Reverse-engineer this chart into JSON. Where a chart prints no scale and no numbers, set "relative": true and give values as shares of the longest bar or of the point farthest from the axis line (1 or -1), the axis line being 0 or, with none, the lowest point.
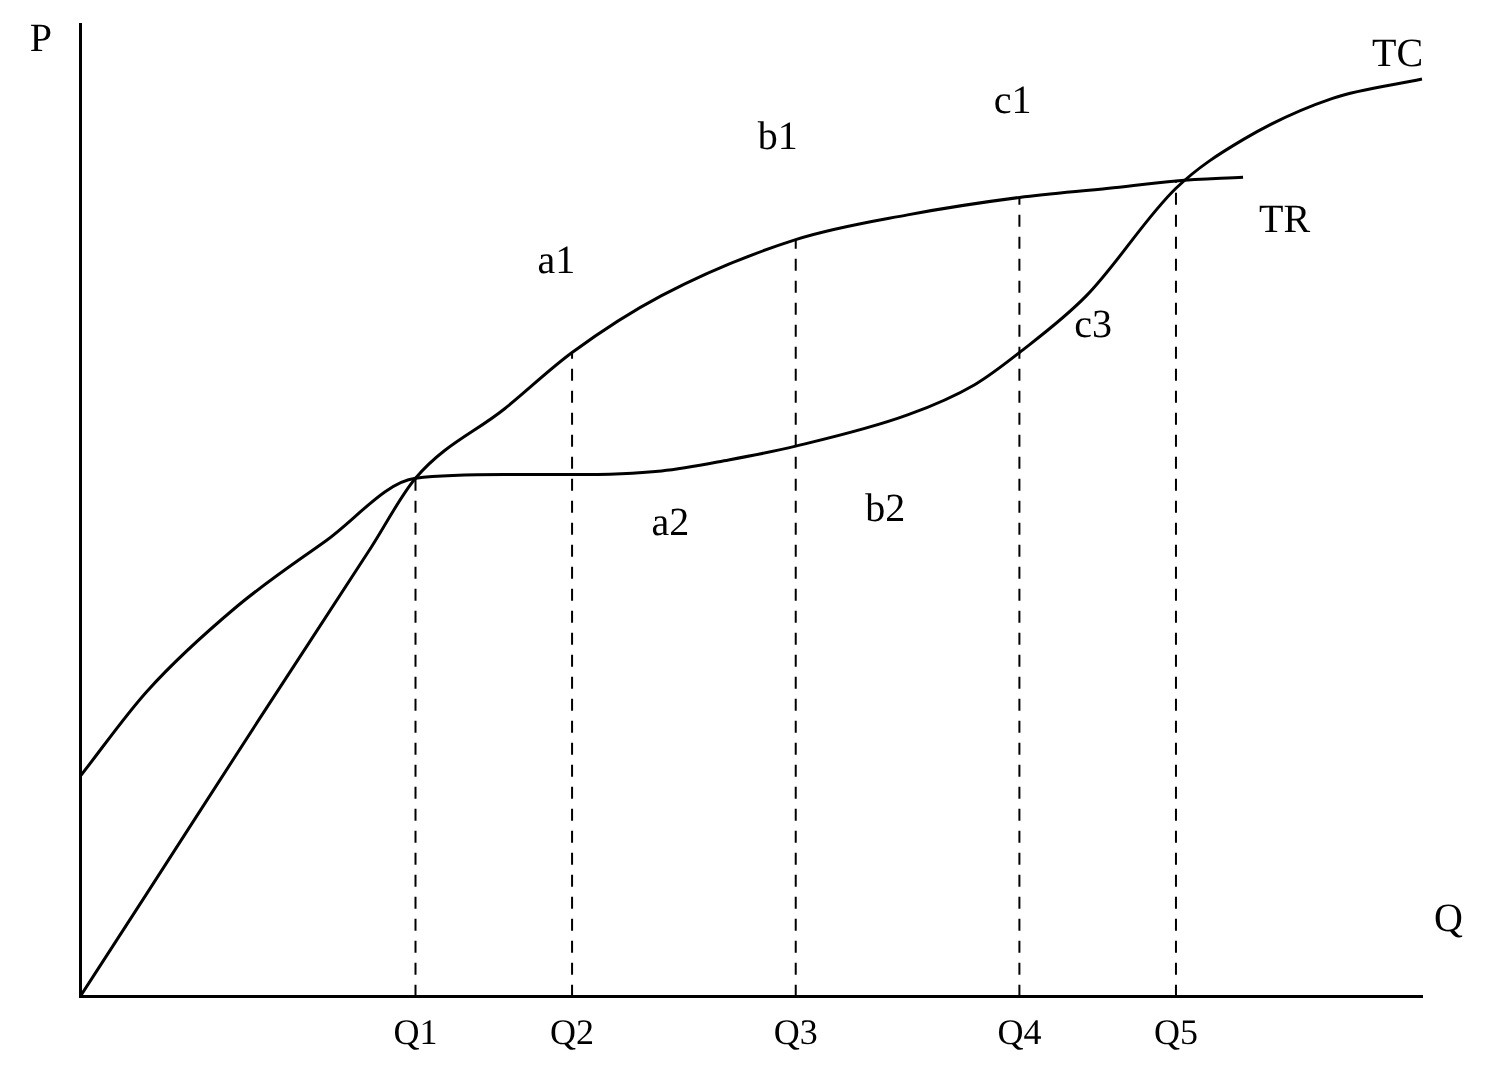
{
  "chart_data": {
    "type": "line",
    "relative": true,
    "xlabel": "Q",
    "ylabel": "P",
    "tick_labels": "x",
    "grid": false,
    "legend": false,
    "marker": "none",
    "line_style": "solid",
    "categories": [
      null,
      null,
      null,
      null,
      null,
      null,
      null,
      null,
      null,
      null,
      null,
      null,
      null,
      null,
      null,
      "Q1",
      null,
      null,
      null,
      null,
      null,
      null,
      "Q2",
      null,
      null,
      null,
      null,
      null,
      null,
      null,
      null,
      null,
      "Q3",
      null,
      null,
      null,
      null,
      null,
      null,
      null,
      null,
      null,
      "Q4",
      null,
      null,
      null,
      null,
      null,
      null,
      "Q5",
      null,
      null,
      null,
      null,
      null,
      null,
      null,
      null,
      null,
      null,
      null
    ],
    "series": [
      {
        "name": "TC",
        "color": "#000000",
        "values": [
          0.24,
          null,
          null,
          0.333,
          null,
          null,
          null,
          0.425,
          null,
          null,
          null,
          0.497,
          null,
          null,
          null,
          0.565,
          null,
          null,
          null,
          0.569,
          null,
          null,
          0.569,
          null,
          null,
          null,
          0.573,
          null,
          null,
          0.585,
          null,
          null,
          0.6,
          null,
          null,
          null,
          null,
          0.634,
          null,
          null,
          0.667,
          null,
          0.702,
          null,
          null,
          0.764,
          null,
          null,
          null,
          0.881,
          null,
          null,
          0.934,
          null,
          null,
          null,
          0.979,
          null,
          null,
          null,
          1.0
        ]
      },
      {
        "name": "TR",
        "color": "#000000",
        "values": [
          0,
          null,
          null,
          0.113,
          null,
          null,
          null,
          null,
          0.302,
          null,
          null,
          null,
          null,
          0.489,
          null,
          0.565,
          null,
          null,
          null,
          0.641,
          null,
          null,
          0.702,
          null,
          null,
          null,
          0.764,
          null,
          null,
          null,
          null,
          null,
          0.825,
          null,
          null,
          null,
          null,
          0.852,
          null,
          null,
          null,
          null,
          0.871,
          null,
          null,
          null,
          0.881,
          null,
          null,
          0.889,
          null,
          null,
          0.893,
          null,
          null,
          null,
          null,
          null,
          null,
          null,
          null
        ]
      }
    ],
    "ref_lines": [
      {
        "axis": "x",
        "value": "Q1",
        "line_style": "dashed",
        "color": "#000000"
      },
      {
        "axis": "x",
        "value": "Q2",
        "line_style": "dashed",
        "color": "#000000"
      },
      {
        "axis": "x",
        "value": "Q3",
        "line_style": "dashed",
        "color": "#000000"
      },
      {
        "axis": "x",
        "value": "Q4",
        "line_style": "dashed",
        "color": "#000000"
      },
      {
        "axis": "x",
        "value": "Q5",
        "line_style": "dashed",
        "color": "#000000"
      }
    ],
    "annotations": [
      "a1",
      "b1",
      "c1",
      "a2",
      "b2",
      "c3"
    ]
  }
}
